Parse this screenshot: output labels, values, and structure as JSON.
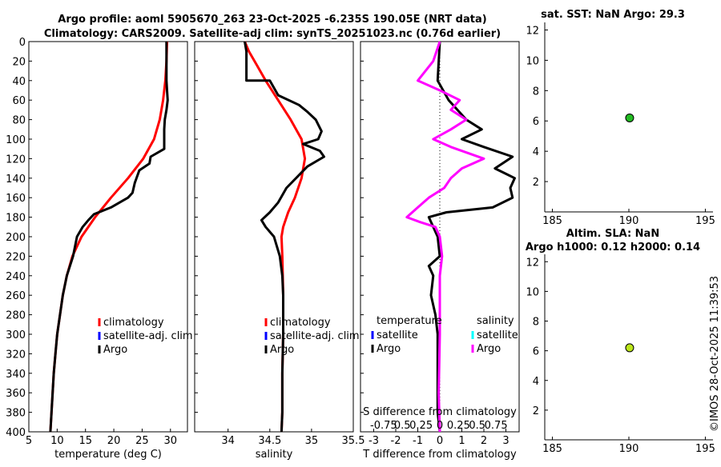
{
  "figure_title": {
    "line1": "Argo profile: aoml 5905670_263 23-Oct-2025 -6.235S 190.05E (NRT data)",
    "line2": "Climatology: CARS2009. Satellite-adj clim: synTS_20251023.nc (0.76d earlier)"
  },
  "watermark": "©IMOS 28-Oct-2025 11:39:53",
  "chart_data": [
    {
      "id": "temperature",
      "type": "line",
      "xlabel": "temperature (deg C)",
      "ylabel": "",
      "xlim": [
        5,
        33
      ],
      "ylim": [
        0,
        400
      ],
      "xticks": [
        "5",
        "10",
        "15",
        "20",
        "25",
        "30"
      ],
      "xtick_values": [
        5,
        10,
        15,
        20,
        25,
        30
      ],
      "yticks": [
        "0",
        "20",
        "40",
        "60",
        "80",
        "100",
        "120",
        "140",
        "160",
        "180",
        "200",
        "220",
        "240",
        "260",
        "280",
        "300",
        "320",
        "340",
        "360",
        "380",
        "400"
      ],
      "legend": {
        "position": "lower-right",
        "entries": [
          {
            "label": "climatology",
            "color": "#ff0000"
          },
          {
            "label": "satellite-adj. clim",
            "color": "#0000ff"
          },
          {
            "label": "Argo",
            "color": "#000000"
          }
        ]
      },
      "series": [
        {
          "name": "climatology",
          "color": "#ff0000",
          "points": [
            [
              29.4,
              0
            ],
            [
              29.3,
              20
            ],
            [
              29.1,
              40
            ],
            [
              28.7,
              60
            ],
            [
              28.1,
              80
            ],
            [
              27.1,
              100
            ],
            [
              25.2,
              120
            ],
            [
              22.5,
              140
            ],
            [
              19.5,
              160
            ],
            [
              16.7,
              180
            ],
            [
              14.3,
              200
            ],
            [
              12.7,
              220
            ],
            [
              11.7,
              240
            ],
            [
              11.0,
              260
            ],
            [
              10.5,
              280
            ],
            [
              10.0,
              300
            ],
            [
              9.7,
              320
            ],
            [
              9.4,
              340
            ],
            [
              9.2,
              360
            ],
            [
              9.0,
              380
            ],
            [
              8.8,
              400
            ]
          ]
        },
        {
          "name": "Argo",
          "color": "#000000",
          "points": [
            [
              29.3,
              0
            ],
            [
              29.3,
              20
            ],
            [
              29.3,
              40
            ],
            [
              29.4,
              50
            ],
            [
              29.5,
              60
            ],
            [
              29.3,
              70
            ],
            [
              29.0,
              80
            ],
            [
              28.9,
              90
            ],
            [
              28.9,
              110
            ],
            [
              26.5,
              118
            ],
            [
              26.3,
              125
            ],
            [
              24.5,
              132
            ],
            [
              23.7,
              145
            ],
            [
              23.3,
              155
            ],
            [
              22.5,
              160
            ],
            [
              19.5,
              170
            ],
            [
              16.5,
              177
            ],
            [
              15.5,
              183
            ],
            [
              14.5,
              190
            ],
            [
              13.5,
              200
            ],
            [
              12.8,
              220
            ],
            [
              11.7,
              240
            ],
            [
              11.0,
              260
            ],
            [
              10.5,
              280
            ],
            [
              10.0,
              300
            ],
            [
              9.7,
              320
            ],
            [
              9.4,
              340
            ],
            [
              9.2,
              360
            ],
            [
              9.0,
              380
            ],
            [
              8.8,
              400
            ]
          ]
        }
      ]
    },
    {
      "id": "salinity",
      "type": "line",
      "xlabel": "salinity",
      "xlim": [
        33.6,
        35.5
      ],
      "ylim": [
        0,
        400
      ],
      "xticks": [
        "34",
        "34.5",
        "35",
        "35.5"
      ],
      "xtick_values": [
        34,
        34.5,
        35,
        35.5
      ],
      "legend": {
        "position": "lower-right",
        "entries": [
          {
            "label": "climatology",
            "color": "#ff0000"
          },
          {
            "label": "satellite-adj. clim",
            "color": "#0000ff"
          },
          {
            "label": "Argo",
            "color": "#000000"
          }
        ]
      },
      "series": [
        {
          "name": "climatology",
          "color": "#ff0000",
          "points": [
            [
              34.2,
              0
            ],
            [
              34.25,
              10
            ],
            [
              34.35,
              25
            ],
            [
              34.45,
              40
            ],
            [
              34.6,
              60
            ],
            [
              34.75,
              80
            ],
            [
              34.88,
              100
            ],
            [
              34.92,
              120
            ],
            [
              34.88,
              140
            ],
            [
              34.8,
              160
            ],
            [
              34.72,
              175
            ],
            [
              34.66,
              190
            ],
            [
              34.64,
              200
            ],
            [
              34.65,
              220
            ],
            [
              34.66,
              260
            ],
            [
              34.66,
              300
            ],
            [
              34.65,
              340
            ],
            [
              34.65,
              380
            ],
            [
              34.64,
              400
            ]
          ]
        },
        {
          "name": "Argo",
          "color": "#000000",
          "points": [
            [
              34.2,
              0
            ],
            [
              34.22,
              10
            ],
            [
              34.22,
              40
            ],
            [
              34.5,
              40
            ],
            [
              34.6,
              55
            ],
            [
              34.85,
              65
            ],
            [
              34.95,
              72
            ],
            [
              35.05,
              80
            ],
            [
              35.12,
              92
            ],
            [
              35.08,
              100
            ],
            [
              34.9,
              105
            ],
            [
              35.1,
              112
            ],
            [
              35.15,
              118
            ],
            [
              34.95,
              128
            ],
            [
              34.7,
              150
            ],
            [
              34.6,
              165
            ],
            [
              34.5,
              175
            ],
            [
              34.4,
              183
            ],
            [
              34.45,
              190
            ],
            [
              34.55,
              200
            ],
            [
              34.62,
              220
            ],
            [
              34.65,
              240
            ],
            [
              34.66,
              260
            ],
            [
              34.66,
              300
            ],
            [
              34.65,
              340
            ],
            [
              34.65,
              380
            ],
            [
              34.64,
              400
            ]
          ]
        }
      ]
    },
    {
      "id": "difference",
      "type": "line",
      "xlabel": "T difference from climatology",
      "xlabel_top": "S difference from climatology",
      "xlim": [
        -3.6,
        3.6
      ],
      "ylim": [
        0,
        400
      ],
      "xticks": [
        "-3",
        "-2",
        "-1",
        "0",
        "1",
        "2",
        "3"
      ],
      "xtick_values": [
        -3,
        -2,
        -1,
        0,
        1,
        2,
        3
      ],
      "s_ticks": [
        "-0.75",
        "0.5",
        "0.25",
        "0",
        "0.25",
        "0.5",
        "0.75"
      ],
      "s_tick_values": [
        -2.55,
        -1.7,
        -0.85,
        0,
        0.85,
        1.7,
        2.55
      ],
      "legend_temperature": {
        "title": "temperature",
        "entries": [
          {
            "label": "satellite",
            "color": "#0000ff"
          },
          {
            "label": "Argo",
            "color": "#000000"
          }
        ]
      },
      "legend_salinity": {
        "title": "salinity",
        "entries": [
          {
            "label": "satellite",
            "color": "#00ffff"
          },
          {
            "label": "Argo",
            "color": "#ff00ff"
          }
        ]
      },
      "series": [
        {
          "name": "T difference Argo",
          "color": "#000000",
          "points": [
            [
              0,
              0
            ],
            [
              -0.1,
              40
            ],
            [
              0.4,
              60
            ],
            [
              1.2,
              80
            ],
            [
              1.9,
              90
            ],
            [
              1.0,
              100
            ],
            [
              2.0,
              108
            ],
            [
              3.3,
              118
            ],
            [
              2.5,
              130
            ],
            [
              3.4,
              140
            ],
            [
              3.2,
              150
            ],
            [
              3.3,
              160
            ],
            [
              2.4,
              170
            ],
            [
              0.3,
              175
            ],
            [
              -0.5,
              180
            ],
            [
              -0.3,
              190
            ],
            [
              -0.1,
              200
            ],
            [
              0,
              220
            ],
            [
              -0.5,
              230
            ],
            [
              -0.3,
              240
            ],
            [
              -0.4,
              260
            ],
            [
              -0.2,
              280
            ],
            [
              -0.1,
              300
            ],
            [
              -0.1,
              340
            ],
            [
              -0.1,
              380
            ],
            [
              0,
              400
            ]
          ]
        },
        {
          "name": "S difference Argo",
          "color": "#ff00ff",
          "points": [
            [
              0,
              0
            ],
            [
              -0.3,
              20
            ],
            [
              -1.0,
              40
            ],
            [
              0,
              50
            ],
            [
              0.9,
              60
            ],
            [
              0.5,
              70
            ],
            [
              1.2,
              80
            ],
            [
              0.5,
              90
            ],
            [
              -0.3,
              100
            ],
            [
              0.5,
              108
            ],
            [
              2.0,
              120
            ],
            [
              1.0,
              130
            ],
            [
              0.5,
              140
            ],
            [
              0.2,
              150
            ],
            [
              -0.5,
              160
            ],
            [
              -1.0,
              170
            ],
            [
              -1.5,
              180
            ],
            [
              -0.9,
              185
            ],
            [
              -0.2,
              190
            ],
            [
              0,
              200
            ],
            [
              0.1,
              220
            ],
            [
              0,
              240
            ],
            [
              0,
              300
            ],
            [
              -0.05,
              360
            ],
            [
              0,
              400
            ]
          ]
        }
      ]
    },
    {
      "id": "sst",
      "type": "scatter",
      "title": "sat. SST: NaN Argo: 29.3",
      "xlim": [
        184.5,
        195.5
      ],
      "ylim": [
        0,
        12.5
      ],
      "xticks": [
        "185",
        "190",
        "195"
      ],
      "xtick_values": [
        185,
        190,
        195
      ],
      "yticks": [
        "2",
        "4",
        "6",
        "8",
        "10",
        "12"
      ],
      "ytick_values": [
        2,
        4,
        6,
        8,
        10,
        12
      ],
      "points": [
        {
          "x": 190.05,
          "y": 6.2,
          "color": "#22bb22"
        }
      ]
    },
    {
      "id": "sla",
      "type": "scatter",
      "title_line1": "Altim. SLA: NaN",
      "title_line2": "Argo h1000: 0.12 h2000: 0.14",
      "xlim": [
        184.5,
        195.5
      ],
      "ylim": [
        0,
        12.5
      ],
      "xticks": [
        "185",
        "190",
        "195"
      ],
      "xtick_values": [
        185,
        190,
        195
      ],
      "yticks": [
        "2",
        "4",
        "6",
        "8",
        "10",
        "12"
      ],
      "ytick_values": [
        2,
        4,
        6,
        8,
        10,
        12
      ],
      "points": [
        {
          "x": 190.05,
          "y": 6.2,
          "color": "#bbe61a"
        }
      ]
    }
  ]
}
